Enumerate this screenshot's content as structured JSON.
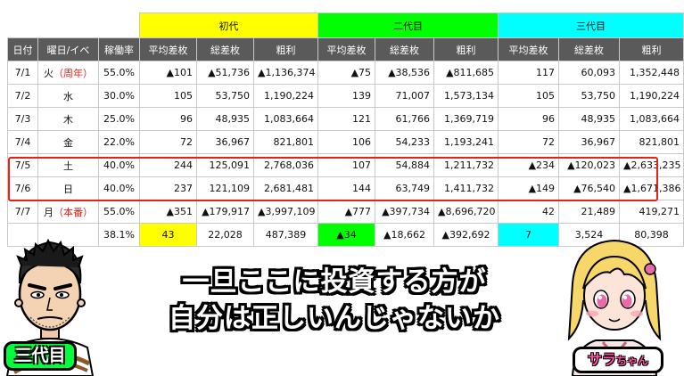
{
  "generations": [
    {
      "label": "初代",
      "color": "#ffff00"
    },
    {
      "label": "二代目",
      "color": "#00ff00"
    },
    {
      "label": "三代目",
      "color": "#00ffff"
    }
  ],
  "headers": [
    "日付",
    "曜日/イベ",
    "稼働率",
    "平均差枚",
    "総差枚",
    "粗利",
    "平均差枚",
    "総差枚",
    "粗利",
    "平均差枚",
    "総差枚",
    "粗利"
  ],
  "rows": [
    {
      "date": "7/1",
      "day": "火",
      "event": "（周年）",
      "rate": "55.0%",
      "cells": [
        "▲101",
        "▲51,736",
        "▲1,136,374",
        "▲75",
        "▲38,536",
        "▲811,685",
        "117",
        "60,093",
        "1,352,448"
      ]
    },
    {
      "date": "7/2",
      "day": "水",
      "event": "",
      "rate": "30.0%",
      "cells": [
        "105",
        "53,750",
        "1,190,224",
        "139",
        "71,007",
        "1,573,134",
        "105",
        "53,750",
        "1,190,224"
      ]
    },
    {
      "date": "7/3",
      "day": "木",
      "event": "",
      "rate": "25.0%",
      "cells": [
        "96",
        "48,935",
        "1,083,664",
        "121",
        "61,766",
        "1,369,719",
        "96",
        "48,935",
        "1,083,664"
      ]
    },
    {
      "date": "7/4",
      "day": "金",
      "event": "",
      "rate": "22.0%",
      "cells": [
        "72",
        "36,967",
        "821,801",
        "106",
        "54,233",
        "1,193,241",
        "72",
        "36,967",
        "821,801"
      ]
    },
    {
      "date": "7/5",
      "day": "土",
      "event": "",
      "rate": "40.0%",
      "cells": [
        "244",
        "125,091",
        "2,768,036",
        "107",
        "54,884",
        "1,211,732",
        "▲234",
        "▲120,023",
        "▲2,633,235"
      ]
    },
    {
      "date": "7/6",
      "day": "日",
      "event": "",
      "rate": "40.0%",
      "cells": [
        "237",
        "121,109",
        "2,681,481",
        "144",
        "63,749",
        "1,411,732",
        "▲149",
        "▲76,540",
        "▲1,671,386"
      ]
    },
    {
      "date": "7/7",
      "day": "月",
      "event": "（本番）",
      "rate": "55.0%",
      "cells": [
        "▲351",
        "▲179,917",
        "▲3,997,109",
        "▲777",
        "▲397,734",
        "▲8,696,720",
        "42",
        "21,489",
        "419,271"
      ]
    }
  ],
  "summary": {
    "rate": "38.1%",
    "cells": [
      "43",
      "22,028",
      "487,389",
      "▲34",
      "▲18,662",
      "▲392,692",
      "7",
      "3,524",
      "80,398"
    ]
  },
  "caption": {
    "line1": "一旦ここに投資する方が",
    "line2": "自分は正しいんじゃないか"
  },
  "characters": {
    "left_name": "三代目",
    "right_name_main": "サラ",
    "right_name_suffix": "ちゃん",
    "left_icon": "man-character-illustration",
    "right_icon": "girl-character-illustration"
  },
  "colors": {
    "accent_red": "#e2231a",
    "header_gray": "#5a5a5a",
    "badge_green": "#00ff3c",
    "badge_pink": "#ff4fa3"
  }
}
